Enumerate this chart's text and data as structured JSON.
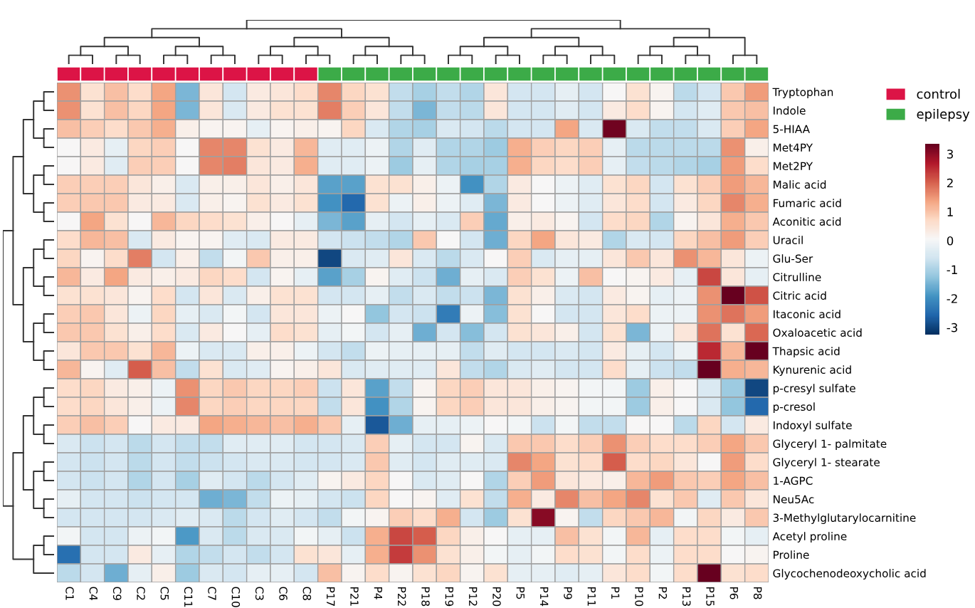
{
  "chart_data": {
    "type": "heatmap",
    "categories": [
      "C1",
      "C4",
      "C9",
      "C2",
      "C5",
      "C11",
      "C7",
      "C10",
      "C3",
      "C6",
      "C8",
      "P17",
      "P21",
      "P4",
      "P22",
      "P18",
      "P19",
      "P12",
      "P20",
      "P5",
      "P14",
      "P9",
      "P11",
      "P1",
      "P10",
      "P2",
      "P13",
      "P15",
      "P6",
      "P8"
    ],
    "y_categories": [
      "Tryptophan",
      "Indole",
      "5-HIAA",
      "Met4PY",
      "Met2PY",
      "Malic acid",
      "Fumaric acid",
      "Aconitic acid",
      "Uracil",
      "Glu-Ser",
      "Citrulline",
      "Citric acid",
      "Itaconic acid",
      "Oxaloacetic acid",
      "Thapsic acid",
      "Kynurenic acid",
      "p-cresyl sulfate",
      "p-cresol",
      "Indoxyl sulfate",
      "Glyceryl 1- palmitate",
      "Glyceryl 1- stearate",
      "1-AGPC",
      "Neu5Ac",
      "3-Methylglutarylocarnitine",
      "Acetyl proline",
      "Proline",
      "Glycochenodeoxycholic acid"
    ],
    "cells": [
      [
        1.5,
        0.5,
        1,
        0.6,
        1.3,
        -1.5,
        0.4,
        -0.6,
        0.3,
        0.4,
        0.6,
        1.6,
        0.7,
        0.5,
        -0.8,
        -1.1,
        -0.8,
        -1,
        0.4,
        -0.6,
        -0.6,
        -0.3,
        -0.6,
        0,
        0.5,
        0.1,
        -0.9,
        -0.6,
        0.9,
        1.4
      ],
      [
        1.5,
        0.5,
        1,
        0.7,
        1.3,
        -1.5,
        0.4,
        -0.5,
        0.3,
        0.5,
        0.5,
        1.7,
        0.8,
        0.4,
        -0.8,
        -1.5,
        -0.8,
        -0.9,
        0.4,
        -0.6,
        -0.6,
        -0.4,
        -0.6,
        0.3,
        0.6,
        0.1,
        -0.6,
        -0.4,
        0.9,
        1
      ],
      [
        1,
        0.8,
        0.6,
        0.9,
        1.2,
        0.2,
        0.1,
        0.1,
        -0.3,
        0.1,
        0.2,
        0.1,
        0.7,
        -0.5,
        -1,
        -1.1,
        -0.5,
        -0.6,
        -0.9,
        -0.6,
        -0.6,
        1.3,
        -0.5,
        3.2,
        -0.5,
        -0.8,
        -0.8,
        -0.5,
        0.8,
        1.3
      ],
      [
        0,
        0.3,
        -0.3,
        0.7,
        0.8,
        0,
        1.6,
        1.6,
        0.5,
        0.3,
        1.1,
        -0.4,
        -0.4,
        -0.2,
        -1,
        -0.4,
        -1,
        -1,
        -1.2,
        1.2,
        0.8,
        0.7,
        0.8,
        -0.3,
        -0.9,
        -0.9,
        -0.9,
        -0.9,
        1.5,
        0.2
      ],
      [
        0,
        0.3,
        -0.4,
        0.8,
        0.8,
        0,
        1.6,
        1.7,
        0.4,
        0.3,
        1.2,
        -0.4,
        -0.4,
        -0.2,
        -1.2,
        -0.3,
        -1,
        -1.1,
        -1.1,
        1.2,
        0.7,
        0.6,
        0.8,
        -0.3,
        -0.8,
        -0.9,
        -1,
        -1.1,
        1.4,
        0.6
      ],
      [
        0.8,
        0.8,
        0.8,
        0.4,
        0.2,
        -0.5,
        0.2,
        0.2,
        0.4,
        0.2,
        0.4,
        -1.8,
        -1.8,
        0.5,
        0.5,
        0.2,
        -0.2,
        -2,
        -1,
        0.3,
        0,
        -0.2,
        -0.4,
        0.5,
        0.7,
        -0.6,
        0.5,
        0.8,
        1.4,
        1.1
      ],
      [
        0.8,
        0.9,
        0.9,
        0.3,
        0.3,
        -0.5,
        0.2,
        0.1,
        0.5,
        0.3,
        0.5,
        -2,
        -2.6,
        0.5,
        -0.2,
        0.2,
        -0.2,
        -0.4,
        -1.5,
        0.3,
        0,
        -0.2,
        -0.4,
        0.4,
        0.6,
        -0.6,
        0.3,
        0.7,
        1.6,
        1.2
      ],
      [
        0,
        1.3,
        0.5,
        0,
        1.1,
        0.7,
        0.6,
        0.5,
        0.2,
        0,
        -0.3,
        -1.5,
        -1.8,
        -0.3,
        -0.6,
        -0.3,
        -0.5,
        0.8,
        -1.7,
        0.2,
        0.3,
        0.1,
        -0.6,
        0.6,
        0.7,
        -1,
        0.1,
        0.4,
        1.2,
        0.9
      ],
      [
        0.6,
        1.1,
        1,
        -0.5,
        0.3,
        0.1,
        0.1,
        -0.4,
        -0.5,
        0.3,
        0.3,
        -0.6,
        -0.7,
        -0.8,
        -1,
        0.9,
        0,
        -0.6,
        -1.6,
        0.7,
        1.3,
        0.4,
        0.3,
        -1,
        -0.5,
        -0.6,
        0.7,
        1,
        1.4,
        0.8
      ],
      [
        0.7,
        0.1,
        0.6,
        1.7,
        -0.6,
        0.2,
        -0.8,
        -0.1,
        0.9,
        0.2,
        0.2,
        -3,
        -0.5,
        -0.4,
        0.4,
        -0.5,
        -0.9,
        -0.5,
        0,
        0.8,
        -0.5,
        -0.3,
        -0.3,
        0.4,
        0.9,
        0.4,
        1.5,
        1.1,
        0.4,
        -0.2
      ],
      [
        1.1,
        0.3,
        1.3,
        0.3,
        0.2,
        0.3,
        0.7,
        0.6,
        -0.6,
        0.1,
        -0.3,
        -1.8,
        -1.1,
        0.1,
        -0.4,
        -0.7,
        -1.6,
        -0.3,
        -0.5,
        0.8,
        0.5,
        -0.2,
        1,
        0,
        0.1,
        0.3,
        -0.3,
        2.2,
        0.4,
        -0.3
      ],
      [
        0.5,
        0.5,
        0.4,
        0.1,
        0.6,
        -0.6,
        0.4,
        -0.5,
        0.2,
        0.5,
        0.5,
        -0.6,
        -0.6,
        -0.3,
        -0.8,
        -0.5,
        -0.8,
        -0.7,
        -1.5,
        0.5,
        0.2,
        -0.5,
        -0.6,
        0.3,
        0.1,
        -0.3,
        -0.2,
        1.5,
        3.3,
        2.1
      ],
      [
        0.8,
        0.9,
        0.4,
        -0.2,
        0.7,
        -0.3,
        -0.5,
        -0.1,
        -0.6,
        0.4,
        0.4,
        -0.2,
        0,
        -1.3,
        -0.6,
        -0.7,
        -2.3,
        -0.2,
        -1.4,
        0.5,
        0,
        -0.6,
        -0.6,
        0.4,
        0.6,
        -0.2,
        -0.2,
        1.5,
        1.8,
        1.4
      ],
      [
        0.9,
        0.9,
        0.5,
        0.2,
        0.6,
        -0.5,
        0.3,
        0,
        -0.3,
        0.6,
        0.5,
        -0.3,
        -0.1,
        -0.6,
        -0.3,
        -1.6,
        -0.6,
        -1.4,
        -0.6,
        0.5,
        0.4,
        0.2,
        -0.6,
        0.5,
        -1.5,
        -0.2,
        0.4,
        1.8,
        0.5,
        1.9
      ],
      [
        0.4,
        0.9,
        0.9,
        0.5,
        1.1,
        -0.2,
        -0.5,
        -0.5,
        0.2,
        0.2,
        -0.2,
        -0.6,
        -0.8,
        -0.2,
        -0.3,
        -0.3,
        -0.3,
        -0.8,
        -0.4,
        -0.6,
        -0.6,
        -0.5,
        -0.6,
        0.3,
        -0.3,
        -0.6,
        -0.2,
        2.5,
        1.1,
        3.3
      ],
      [
        1.1,
        0.1,
        -0.4,
        2,
        1,
        -0.8,
        0.5,
        -0.5,
        -0.4,
        0.1,
        0.2,
        0.4,
        -0.5,
        -0.4,
        -0.4,
        -0.4,
        0.4,
        -0.8,
        -1,
        -0.5,
        -0.4,
        -0.6,
        -0.6,
        0.6,
        -0.3,
        -0.7,
        -0.8,
        3.3,
        1.2,
        1.1
      ],
      [
        0.6,
        0.7,
        0.3,
        0.2,
        -0.2,
        1.5,
        0.7,
        0.9,
        0.7,
        0.7,
        0.8,
        -0.7,
        0.4,
        -1.8,
        -0.8,
        0.1,
        0.7,
        0.8,
        0.4,
        0.4,
        0.2,
        0.1,
        -0.1,
        -0.1,
        -1.2,
        0.2,
        0,
        -0.5,
        -1.2,
        -3
      ],
      [
        0.6,
        0.7,
        0.4,
        0.2,
        -0.2,
        1.6,
        0.7,
        0.8,
        0.7,
        0.7,
        0.7,
        -0.8,
        0.4,
        -2,
        -1,
        0.1,
        0.7,
        0.8,
        0.4,
        0.4,
        0.2,
        0.1,
        -0.1,
        -0.1,
        -1.2,
        0.2,
        0,
        -0.5,
        -1.3,
        -2.6
      ],
      [
        0.8,
        1,
        0.8,
        0,
        0.3,
        0.3,
        1.3,
        1.2,
        1.1,
        1,
        1.2,
        0.9,
        -0.3,
        -2.8,
        -1.6,
        -0.3,
        -0.3,
        -0.2,
        0,
        -0.1,
        -0.7,
        -0.1,
        -0.8,
        -0.8,
        0,
        0,
        -0.9,
        0.7,
        -0.6,
        0.3
      ],
      [
        -0.5,
        -0.7,
        -0.6,
        -0.9,
        -0.6,
        -0.8,
        -0.8,
        -0.4,
        -0.4,
        -0.4,
        -0.6,
        -0.6,
        -0.5,
        0.8,
        -0.3,
        -0.6,
        -0.6,
        0.1,
        -0.5,
        0.9,
        0.9,
        0.6,
        0.8,
        1.5,
        0.8,
        0.6,
        0.6,
        0.8,
        1.3,
        0.9
      ],
      [
        -0.6,
        -0.7,
        -0.6,
        -0.9,
        -0.6,
        -0.8,
        -0.7,
        -0.6,
        -0.5,
        -0.5,
        -0.6,
        -0.6,
        -0.5,
        0.9,
        -0.4,
        -0.6,
        -0.4,
        -0.4,
        -0.5,
        1.6,
        1.3,
        0.5,
        0.6,
        2,
        0.6,
        0.7,
        0.4,
        0,
        1.4,
        0.6
      ],
      [
        -0.6,
        -0.7,
        -0.6,
        -1,
        -0.6,
        -1.1,
        -0.4,
        -0.6,
        -0.9,
        -0.6,
        -0.4,
        0.1,
        0.3,
        0.7,
        0,
        -0.5,
        -0.4,
        0,
        -1,
        0.8,
        1.4,
        0.4,
        0.3,
        0.2,
        1.1,
        1.4,
        0.9,
        0.8,
        1.3,
        1
      ],
      [
        -0.3,
        -0.6,
        -0.6,
        -0.7,
        -0.6,
        -0.6,
        -1.6,
        -1.5,
        -0.8,
        -0.2,
        -0.3,
        -0.6,
        -0.7,
        0.7,
        0,
        0.1,
        -0.4,
        0.5,
        -0.8,
        1.2,
        0.3,
        1.6,
        1,
        1.3,
        1.6,
        0.5,
        0.9,
        -0.4,
        0.9,
        0.4
      ],
      [
        -0.6,
        -0.6,
        -0.6,
        -0.6,
        -0.5,
        -0.4,
        -0.5,
        -0.9,
        -0.6,
        -0.4,
        -0.6,
        -0.8,
        -0.1,
        0.1,
        0.8,
        0.6,
        1.2,
        -0.6,
        -1.2,
        0.5,
        3,
        0.1,
        -0.8,
        0.7,
        0.9,
        1.1,
        -0.1,
        0.7,
        0.3,
        0.9
      ],
      [
        -0.1,
        -0.6,
        -0.6,
        -0.2,
        -0.1,
        -1.9,
        -0.5,
        -0.9,
        -0.5,
        -0.5,
        -0.1,
        -0.3,
        -0.7,
        1.2,
        2.2,
        2,
        0.7,
        0.2,
        0,
        -0.3,
        -0.3,
        1,
        0.5,
        -0.1,
        1.1,
        -0.3,
        0.6,
        0.6,
        -0.1,
        -0.3
      ],
      [
        -2.5,
        -0.6,
        -0.6,
        0.3,
        -0.3,
        -1,
        -0.8,
        -0.6,
        -0.8,
        -0.6,
        0.5,
        0.4,
        -0.3,
        1.2,
        2.3,
        1.5,
        0.5,
        0.2,
        -0.1,
        -0.3,
        -0.1,
        0.6,
        0.5,
        -0.1,
        0.6,
        -0.2,
        0.6,
        0.6,
        0,
        0.1
      ],
      [
        -0.9,
        -0.6,
        -1.6,
        -0.3,
        0.2,
        -1.2,
        -0.5,
        -0.6,
        -0.3,
        -0.3,
        -0.6,
        1,
        0.1,
        0.6,
        0.1,
        0.5,
        0.7,
        0.1,
        0.5,
        -0.3,
        -0.3,
        -0.4,
        -0.3,
        0.4,
        0.6,
        -0.1,
        0.6,
        3.3,
        0.5,
        0.6
      ]
    ],
    "clim": [
      -3.3,
      3.3
    ],
    "cticks": [
      -3,
      -2,
      -1,
      0,
      1,
      2,
      3
    ],
    "series": [
      {
        "name": "control",
        "color": "#dc1446",
        "values": [
          null,
          null,
          null,
          null,
          null,
          null,
          null,
          null,
          null,
          null,
          null,
          null,
          null,
          null,
          null,
          null,
          null,
          null,
          null,
          null,
          null,
          null,
          null,
          null,
          null,
          null,
          null,
          null,
          null,
          null
        ]
      },
      {
        "name": "epilepsy",
        "color": "#3cab48",
        "values": [
          null,
          null,
          null,
          null,
          null,
          null,
          null,
          null,
          null,
          null,
          null,
          null,
          null,
          null,
          null,
          null,
          null,
          null,
          null,
          null,
          null,
          null,
          null,
          null,
          null,
          null,
          null,
          null,
          null,
          null
        ]
      }
    ],
    "colors": [
      "#dc1446",
      "#dc1446",
      "#dc1446",
      "#dc1446",
      "#dc1446",
      "#dc1446",
      "#dc1446",
      "#dc1446",
      "#dc1446",
      "#dc1446",
      "#dc1446",
      "#3cab48",
      "#3cab48",
      "#3cab48",
      "#3cab48",
      "#3cab48",
      "#3cab48",
      "#3cab48",
      "#3cab48",
      "#3cab48",
      "#3cab48",
      "#3cab48",
      "#3cab48",
      "#3cab48",
      "#3cab48",
      "#3cab48",
      "#3cab48",
      "#3cab48",
      "#3cab48",
      "#3cab48"
    ],
    "legend": "top right"
  }
}
